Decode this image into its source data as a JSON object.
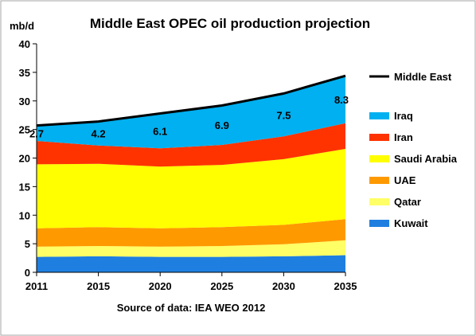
{
  "chart_data": {
    "type": "area",
    "stacked": true,
    "title": "Middle East OPEC oil production projection",
    "ylabel": "mb/d",
    "xlabel": "",
    "source": "Source of data: IEA WEO 2012",
    "x": [
      "2011",
      "2015",
      "2020",
      "2025",
      "2030",
      "2035"
    ],
    "ylim": [
      0,
      40
    ],
    "yticks": [
      "0",
      "5",
      "10",
      "15",
      "20",
      "25",
      "30",
      "35",
      "40"
    ],
    "grid": false,
    "legend_position": "right",
    "series": [
      {
        "name": "Kuwait",
        "color": "#1f7fe0",
        "values": [
          2.7,
          2.8,
          2.7,
          2.7,
          2.8,
          3.0
        ]
      },
      {
        "name": "Qatar",
        "color": "#ffff66",
        "values": [
          1.8,
          1.8,
          1.8,
          1.9,
          2.1,
          2.6
        ]
      },
      {
        "name": "UAE",
        "color": "#ff9900",
        "values": [
          3.2,
          3.3,
          3.2,
          3.3,
          3.4,
          3.7
        ]
      },
      {
        "name": "Saudi Arabia",
        "color": "#ffff00",
        "values": [
          11.2,
          11.1,
          10.8,
          10.9,
          11.5,
          12.3
        ]
      },
      {
        "name": "Iran",
        "color": "#ff3300",
        "values": [
          4.1,
          3.2,
          3.2,
          3.5,
          4.0,
          4.5
        ]
      },
      {
        "name": "Iraq",
        "color": "#00b0f0",
        "values": [
          2.7,
          4.2,
          6.1,
          6.9,
          7.5,
          8.3
        ]
      }
    ],
    "total": {
      "name": "Middle East",
      "color": "#000000",
      "values": [
        25.7,
        26.4,
        27.8,
        29.2,
        31.3,
        34.4
      ]
    },
    "data_labels": {
      "series": "Iraq",
      "values": [
        "2.7",
        "4.2",
        "6.1",
        "6.9",
        "7.5",
        "8.3"
      ]
    }
  }
}
